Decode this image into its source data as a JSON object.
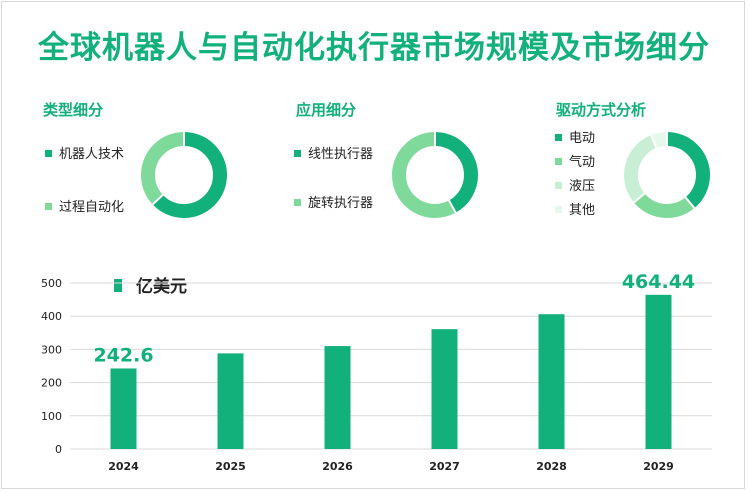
{
  "title": "全球机器人与自动化执行器市场规模及市场细分",
  "colors": {
    "dark": "#12b07a",
    "medium": "#7fd99b",
    "light": "#c8efd6",
    "pale": "#e6f8ec",
    "track": "#e9f5ee"
  },
  "donuts": [
    {
      "title": "类型细分",
      "segments": [
        {
          "label": "机器人技术",
          "value": 0.63,
          "color": "#12b07a"
        },
        {
          "label": "过程自动化",
          "value": 0.37,
          "color": "#7fd99b"
        }
      ]
    },
    {
      "title": "应用细分",
      "segments": [
        {
          "label": "线性执行器",
          "value": 0.42,
          "color": "#12b07a"
        },
        {
          "label": "旋转执行器",
          "value": 0.58,
          "color": "#7fd99b"
        }
      ]
    },
    {
      "title": "驱动方式分析",
      "segments": [
        {
          "label": "电动",
          "value": 0.39,
          "color": "#12b07a"
        },
        {
          "label": "气动",
          "value": 0.25,
          "color": "#7fd99b"
        },
        {
          "label": "液压",
          "value": 0.3,
          "color": "#c8efd6"
        },
        {
          "label": "其他",
          "value": 0.06,
          "color": "#e6f8ec"
        }
      ]
    }
  ],
  "chart_data": {
    "type": "bar",
    "categories": [
      "2024",
      "2025",
      "2026",
      "2027",
      "2028",
      "2029"
    ],
    "series": [
      {
        "name": "亿美元",
        "values": [
          242.6,
          288,
          310,
          361,
          406,
          464.44
        ]
      }
    ],
    "data_labels": {
      "2024": "242.6",
      "2029": "464.44"
    },
    "yticks": [
      0,
      100,
      200,
      300,
      400,
      500
    ],
    "ylim": [
      0,
      500
    ],
    "grid": true,
    "color": "#12b07a"
  }
}
